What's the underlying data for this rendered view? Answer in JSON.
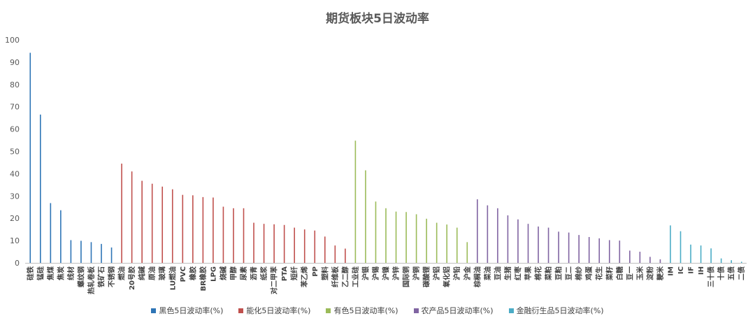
{
  "chart_data": {
    "type": "bar",
    "title": "期货板块5日波动率",
    "ylim": [
      0,
      100
    ],
    "yticks": [
      0,
      10,
      20,
      30,
      40,
      50,
      60,
      70,
      80,
      90,
      100
    ],
    "grid": false,
    "legend_position": "bottom",
    "series": [
      {
        "name": "黑色5日波动率(%)",
        "color": "#2E75B6",
        "categories": [
          "硅铁",
          "锰硅",
          "焦煤",
          "焦炭",
          "线材",
          "螺纹钢",
          "热轧卷板",
          "铁矿石",
          "不锈钢"
        ],
        "values": [
          94.2,
          66.5,
          26.8,
          23.6,
          10.2,
          9.9,
          9.3,
          8.5,
          6.9
        ]
      },
      {
        "name": "能化5日波动率(%)",
        "color": "#C0504D",
        "categories": [
          "燃油",
          "20号胶",
          "纯碱",
          "原油",
          "玻璃",
          "LU燃油",
          "PVC",
          "橡胶",
          "BR橡胶",
          "LPG",
          "烧碱",
          "甲醇",
          "尿素",
          "沥青",
          "纸浆",
          "对二甲苯",
          "PTA",
          "短纤",
          "苯乙烯",
          "PP",
          "塑料",
          "纤维板",
          "乙二醇"
        ],
        "values": [
          44.5,
          41.0,
          36.8,
          35.5,
          34.2,
          33.0,
          30.5,
          30.3,
          29.5,
          29.3,
          25.2,
          24.5,
          24.5,
          18.0,
          17.5,
          17.3,
          17.0,
          15.8,
          15.0,
          14.5,
          11.8,
          7.8,
          6.4
        ]
      },
      {
        "name": "有色5日波动率(%)",
        "color": "#9BBB59",
        "categories": [
          "工业硅",
          "沪银",
          "沪锡",
          "沪镍",
          "沪锌",
          "国际铜",
          "沪铜",
          "碳酸锂",
          "沪铝",
          "氧化铝",
          "沪铅",
          "沪金"
        ],
        "values": [
          54.8,
          41.5,
          27.5,
          24.5,
          23.0,
          22.8,
          21.8,
          19.8,
          18.0,
          17.2,
          15.8,
          9.3
        ]
      },
      {
        "name": "农产品5日波动率(%)",
        "color": "#8064A2",
        "categories": [
          "棕榈油",
          "菜油",
          "豆油",
          "生猪",
          "红枣",
          "苹果",
          "棉花",
          "菜粕",
          "豆粕",
          "豆二",
          "棉纱",
          "鸡蛋",
          "花生",
          "菜籽",
          "白糖",
          "豆一",
          "玉米",
          "淀粉",
          "粳米"
        ],
        "values": [
          28.5,
          25.8,
          24.5,
          21.3,
          19.5,
          17.5,
          16.3,
          15.8,
          14.0,
          13.6,
          12.5,
          11.6,
          11.0,
          10.2,
          10.0,
          5.5,
          5.0,
          2.7,
          1.6
        ]
      },
      {
        "name": "金融衍生品5日波动率(%)",
        "color": "#4BACC6",
        "categories": [
          "IM",
          "IC",
          "IF",
          "IH",
          "三十债",
          "十债",
          "五债",
          "二债"
        ],
        "values": [
          16.8,
          14.2,
          8.2,
          7.8,
          6.5,
          2.0,
          1.2,
          0.5
        ]
      }
    ]
  }
}
